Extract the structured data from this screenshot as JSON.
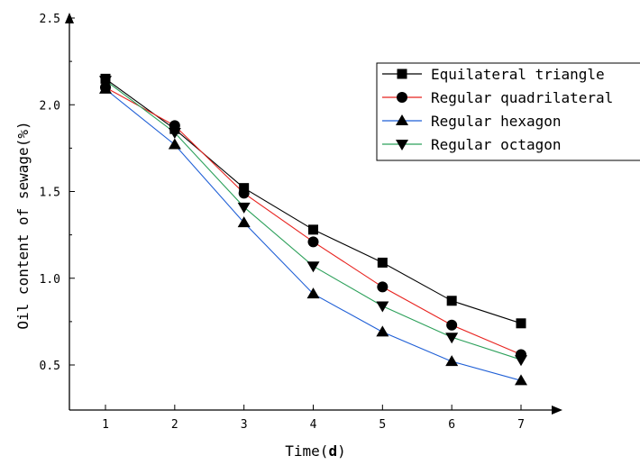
{
  "chart_data": {
    "type": "line",
    "title": "",
    "xlabel_prefix": "Time(",
    "xlabel_unit": "d",
    "xlabel_suffix": ")",
    "ylabel": "Oil content of sewage(%)",
    "x": [
      1,
      2,
      3,
      4,
      5,
      6,
      7
    ],
    "x_ticks": [
      "1",
      "2",
      "3",
      "4",
      "5",
      "6",
      "7"
    ],
    "xlim": [
      0.5,
      7.5
    ],
    "ylim": [
      0.3,
      2.5
    ],
    "y_ticks": [
      "0.5",
      "1.0",
      "1.5",
      "2.0",
      "2.5"
    ],
    "y_tick_values": [
      0.5,
      1.0,
      1.5,
      2.0,
      2.5
    ],
    "grid": false,
    "legend_position": "top-right",
    "series": [
      {
        "name": "Equilateral triangle",
        "marker": "square",
        "color": "#000000",
        "values": [
          2.15,
          1.86,
          1.52,
          1.28,
          1.09,
          0.87,
          0.74
        ]
      },
      {
        "name": "Regular quadrilateral",
        "marker": "circle",
        "color": "#e8231f",
        "values": [
          2.1,
          1.88,
          1.49,
          1.21,
          0.95,
          0.73,
          0.56
        ]
      },
      {
        "name": "Regular hexagon",
        "marker": "triangle-up",
        "color": "#1f5fd6",
        "values": [
          2.09,
          1.77,
          1.32,
          0.91,
          0.69,
          0.52,
          0.41
        ]
      },
      {
        "name": "Regular octagon",
        "marker": "triangle-down",
        "color": "#2ca05a",
        "values": [
          2.14,
          1.84,
          1.41,
          1.07,
          0.84,
          0.66,
          0.53
        ]
      }
    ]
  }
}
